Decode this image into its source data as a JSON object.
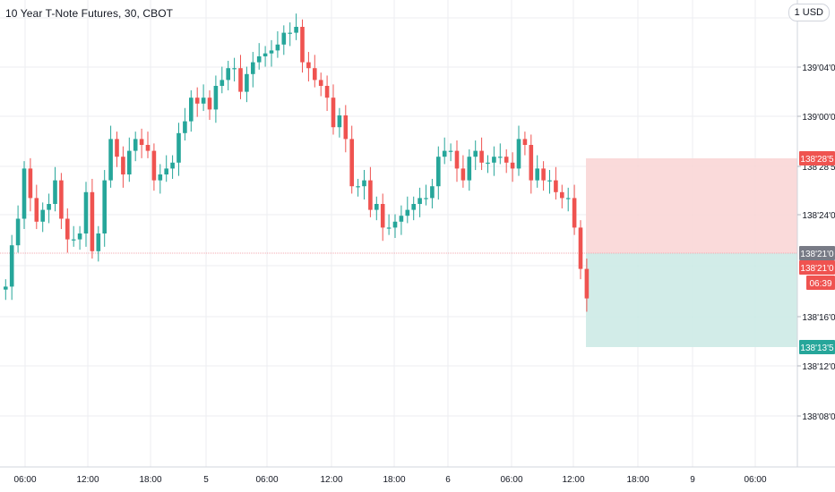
{
  "header": {
    "title": "10 Year T-Note Futures, 30, CBOT"
  },
  "scale_button": {
    "label": "1 USD"
  },
  "colors": {
    "up": "#26a69a",
    "down": "#ef5350",
    "grid": "#eceef2",
    "axis": "#787b86",
    "risk": "#f9d6d6",
    "reward": "#cdeae6",
    "price_line": "#f3a8b0"
  },
  "price_axis": {
    "ticks": [
      "139'04'0",
      "139'00'0",
      "138'28'5",
      "138'24'0",
      "138'16'0",
      "138'12'0",
      "138'08'0"
    ]
  },
  "time_axis": {
    "labels": [
      "06:00",
      "12:00",
      "18:00",
      "5",
      "06:00",
      "12:00",
      "18:00",
      "6",
      "06:00",
      "12:00",
      "18:00",
      "9",
      "06:00"
    ]
  },
  "price_labels": {
    "target": "138'28'5",
    "entry_grey": "138'21'0",
    "last": "138'21'0",
    "countdown": "06:39",
    "stop": "138'13'5"
  },
  "chart_data": {
    "type": "candlestick",
    "symbol": "10 Year T-Note Futures",
    "interval": "30",
    "exchange": "CBOT",
    "open_values": [
      11,
      12,
      26,
      35,
      52,
      42,
      34,
      38,
      40,
      48,
      35,
      28,
      28,
      30,
      44,
      24,
      30,
      48,
      62,
      56,
      50,
      58,
      62,
      60,
      58,
      48,
      50,
      52,
      54,
      64,
      68,
      76,
      74,
      76,
      72,
      80,
      82,
      86,
      86,
      78,
      84,
      88,
      90,
      91,
      92,
      94,
      98,
      98,
      100,
      88,
      86,
      82,
      80,
      76,
      66,
      70,
      62,
      46,
      46,
      48,
      38,
      40,
      32,
      32,
      34,
      36,
      38,
      40,
      42,
      42,
      46,
      56,
      58,
      58,
      52,
      48,
      56,
      58,
      54,
      54,
      56,
      56,
      54,
      52,
      62,
      60,
      48,
      52,
      48,
      48,
      44,
      42,
      42,
      32,
      18
    ],
    "close_values": [
      12,
      26,
      35,
      52,
      42,
      34,
      38,
      40,
      48,
      35,
      28,
      28,
      30,
      44,
      24,
      30,
      48,
      62,
      56,
      50,
      58,
      62,
      60,
      58,
      48,
      50,
      52,
      54,
      64,
      68,
      76,
      74,
      76,
      72,
      80,
      82,
      86,
      86,
      78,
      84,
      88,
      90,
      91,
      92,
      94,
      98,
      98,
      100,
      88,
      86,
      82,
      80,
      76,
      66,
      70,
      62,
      46,
      46,
      48,
      38,
      40,
      32,
      32,
      34,
      36,
      38,
      40,
      42,
      42,
      46,
      56,
      58,
      58,
      52,
      48,
      56,
      58,
      54,
      54,
      56,
      56,
      54,
      52,
      62,
      60,
      48,
      52,
      48,
      48,
      44,
      42,
      42,
      32,
      18,
      8
    ]
  }
}
